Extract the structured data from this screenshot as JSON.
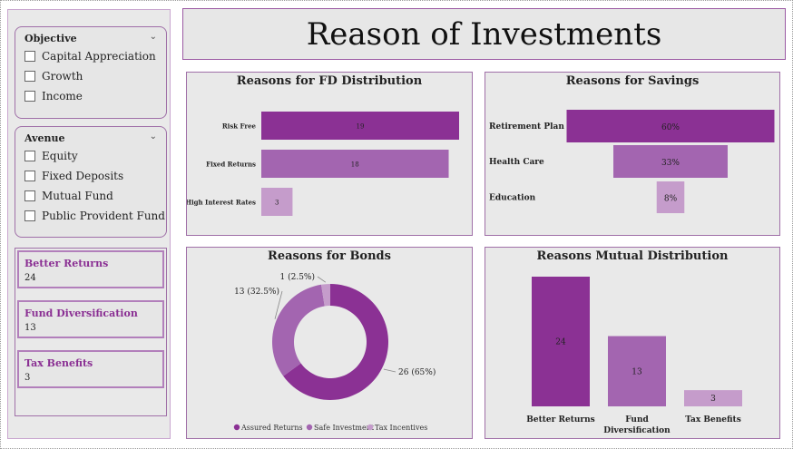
{
  "title": "Reason of Investments",
  "slicers": {
    "objective": {
      "title": "Objective",
      "options": [
        "Capital Appreciation",
        "Growth",
        "Income"
      ]
    },
    "avenue": {
      "title": "Avenue",
      "options": [
        "Equity",
        "Fixed Deposits",
        "Mutual Fund",
        "Public Provident Fund"
      ]
    }
  },
  "kpis": [
    {
      "label": "Better Returns",
      "value": "24"
    },
    {
      "label": "Fund Diversification",
      "value": "13"
    },
    {
      "label": "Tax Benefits",
      "value": "3"
    }
  ],
  "colors": {
    "dark": "#8b3194",
    "mid": "#a365b0",
    "light": "#c59ccb",
    "panel_border": "#a070a8"
  },
  "chart_data": [
    {
      "id": "fd",
      "type": "bar",
      "orientation": "horizontal",
      "title": "Reasons for FD Distribution",
      "categories": [
        "Risk Free",
        "Fixed Returns",
        "High Interest Rates"
      ],
      "values": [
        19,
        18,
        3
      ],
      "data_labels": [
        "19",
        "18",
        "3"
      ],
      "xlim": [
        0,
        19
      ]
    },
    {
      "id": "savings",
      "type": "bar",
      "orientation": "horizontal-funnel",
      "title": "Reasons for Savings",
      "categories": [
        "Retirement Plan",
        "Health Care",
        "Education"
      ],
      "values": [
        60,
        33,
        8
      ],
      "data_labels": [
        "60%",
        "33%",
        "8%"
      ]
    },
    {
      "id": "bonds",
      "type": "pie",
      "style": "donut",
      "title": "Reasons for Bonds",
      "categories": [
        "Assured Returns",
        "Safe Investment",
        "Tax Incentives"
      ],
      "values": [
        26,
        13,
        1
      ],
      "data_labels": [
        "26 (65%)",
        "13 (32.5%)",
        "1 (2.5%)"
      ],
      "legend": "bottom"
    },
    {
      "id": "mutual",
      "type": "bar",
      "orientation": "vertical",
      "title": "Reasons Mutual Distribution",
      "categories": [
        "Better Returns",
        "Fund Diversification",
        "Tax Benefits"
      ],
      "category_lines": [
        [
          "Better Returns"
        ],
        [
          "Fund",
          "Diversification"
        ],
        [
          "Tax Benefits"
        ]
      ],
      "values": [
        24,
        13,
        3
      ],
      "data_labels": [
        "24",
        "13",
        "3"
      ],
      "ylim": [
        0,
        24
      ]
    }
  ]
}
